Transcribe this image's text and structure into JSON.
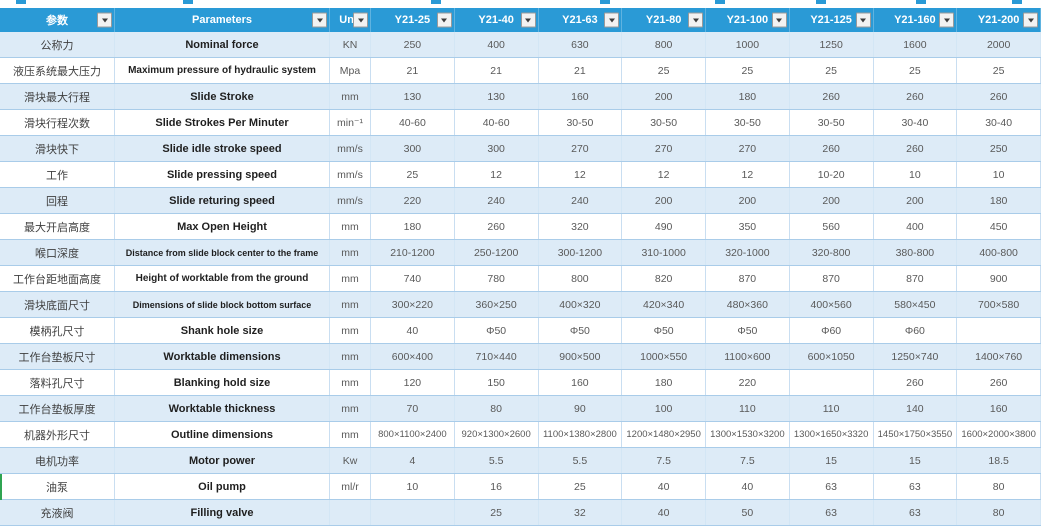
{
  "table": {
    "columns": [
      {
        "id": "param-cn",
        "label": "参数"
      },
      {
        "id": "param-en",
        "label": "Parameters"
      },
      {
        "id": "unit",
        "label": "Unit"
      },
      {
        "id": "y21-25",
        "label": "Y21-25"
      },
      {
        "id": "y21-40",
        "label": "Y21-40"
      },
      {
        "id": "y21-63",
        "label": "Y21-63"
      },
      {
        "id": "y21-80",
        "label": "Y21-80"
      },
      {
        "id": "y21-100",
        "label": "Y21-100"
      },
      {
        "id": "y21-125",
        "label": "Y21-125"
      },
      {
        "id": "y21-160",
        "label": "Y21-160"
      },
      {
        "id": "y21-200",
        "label": "Y21-200"
      }
    ],
    "rows": [
      {
        "cn": "公称力",
        "en": "Nominal force",
        "unit": "KN",
        "values": [
          "250",
          "400",
          "630",
          "800",
          "1000",
          "1250",
          "1600",
          "2000"
        ]
      },
      {
        "cn": "液压系统最大压力",
        "en": "Maximum pressure of hydraulic system",
        "unit": "Mpa",
        "values": [
          "21",
          "21",
          "21",
          "25",
          "25",
          "25",
          "25",
          "25"
        ]
      },
      {
        "cn": "滑块最大行程",
        "en": "Slide Stroke",
        "unit": "mm",
        "values": [
          "130",
          "130",
          "160",
          "200",
          "180",
          "260",
          "260",
          "260"
        ]
      },
      {
        "cn": "滑块行程次数",
        "en": "Slide Strokes Per Minuter",
        "unit": "min⁻¹",
        "values": [
          "40-60",
          "40-60",
          "30-50",
          "30-50",
          "30-50",
          "30-50",
          "30-40",
          "30-40"
        ]
      },
      {
        "cn": "滑块快下",
        "en": "Slide idle stroke speed",
        "unit": "mm/s",
        "values": [
          "300",
          "300",
          "270",
          "270",
          "270",
          "260",
          "260",
          "250"
        ]
      },
      {
        "cn": "工作",
        "en": "Slide pressing speed",
        "unit": "mm/s",
        "values": [
          "25",
          "12",
          "12",
          "12",
          "12",
          "10-20",
          "10",
          "10"
        ]
      },
      {
        "cn": "回程",
        "en": "Slide returing speed",
        "unit": "mm/s",
        "values": [
          "220",
          "240",
          "240",
          "200",
          "200",
          "200",
          "200",
          "180"
        ]
      },
      {
        "cn": "最大开启高度",
        "en": "Max Open Height",
        "unit": "mm",
        "values": [
          "180",
          "260",
          "320",
          "490",
          "350",
          "560",
          "400",
          "450"
        ]
      },
      {
        "cn": "喉口深度",
        "en": "Distance from slide block center to the frame",
        "unit": "mm",
        "values": [
          "210-1200",
          "250-1200",
          "300-1200",
          "310-1000",
          "320-1000",
          "320-800",
          "380-800",
          "400-800"
        ]
      },
      {
        "cn": "工作台距地面高度",
        "en": "Height of worktable from the ground",
        "unit": "mm",
        "values": [
          "740",
          "780",
          "800",
          "820",
          "870",
          "870",
          "870",
          "900"
        ]
      },
      {
        "cn": "滑块底面尺寸",
        "en": "Dimensions of slide block bottom surface",
        "unit": "mm",
        "values": [
          "300×220",
          "360×250",
          "400×320",
          "420×340",
          "480×360",
          "400×560",
          "580×450",
          "700×580"
        ]
      },
      {
        "cn": "模柄孔尺寸",
        "en": "Shank hole size",
        "unit": "mm",
        "values": [
          "40",
          "Φ50",
          "Φ50",
          "Φ50",
          "Φ50",
          "Φ60",
          "Φ60",
          ""
        ]
      },
      {
        "cn": "工作台垫板尺寸",
        "en": "Worktable dimensions",
        "unit": "mm",
        "values": [
          "600×400",
          "710×440",
          "900×500",
          "1000×550",
          "1100×600",
          "600×1050",
          "1250×740",
          "1400×760"
        ]
      },
      {
        "cn": "落料孔尺寸",
        "en": "Blanking hold size",
        "unit": "mm",
        "values": [
          "120",
          "150",
          "160",
          "180",
          "220",
          "",
          "260",
          "260"
        ]
      },
      {
        "cn": "工作台垫板厚度",
        "en": "Worktable thickness",
        "unit": "mm",
        "values": [
          "70",
          "80",
          "90",
          "100",
          "110",
          "110",
          "140",
          "160"
        ]
      },
      {
        "cn": "机器外形尺寸",
        "en": "Outline dimensions",
        "unit": "mm",
        "values": [
          "800×1100×2400",
          "920×1300×2600",
          "1100×1380×2800",
          "1200×1480×2950",
          "1300×1530×3200",
          "1300×1650×3320",
          "1450×1750×3550",
          "1600×2000×3800"
        ]
      },
      {
        "cn": "电机功率",
        "en": "Motor power",
        "unit": "Kw",
        "values": [
          "4",
          "5.5",
          "5.5",
          "7.5",
          "7.5",
          "15",
          "15",
          "18.5"
        ]
      },
      {
        "cn": "油泵",
        "en": "Oil pump",
        "unit": "ml/r",
        "values": [
          "10",
          "16",
          "25",
          "40",
          "40",
          "63",
          "63",
          "80"
        ]
      },
      {
        "cn": "充液阀",
        "en": "Filling valve",
        "unit": "",
        "values": [
          "",
          "25",
          "32",
          "40",
          "50",
          "63",
          "63",
          "80"
        ]
      }
    ]
  },
  "colors": {
    "header_bg": "#2a9ad6",
    "row_shade_bg": "#ddebf7",
    "row_plain_bg": "#ffffff",
    "row_border": "#a9cce9",
    "header_text": "#ffffff",
    "value_text": "#595959",
    "selection_marker": "#2fa452"
  },
  "icons": {
    "filter_dropdown": "filter-dropdown-icon"
  }
}
